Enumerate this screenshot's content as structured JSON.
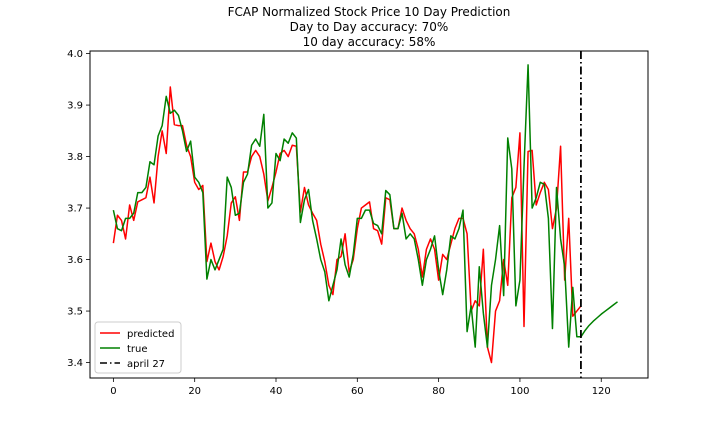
{
  "chart_data": {
    "type": "line",
    "title": "FCAP Normalized Stock Price 10 Day Prediction",
    "subtitle_lines": [
      "Day to Day accuracy: 70%",
      "10 day accuracy: 58%"
    ],
    "xlabel": "",
    "ylabel": "",
    "xlim": [
      -5.75,
      131.5
    ],
    "ylim": [
      3.37,
      4.005
    ],
    "x_ticks": [
      0,
      20,
      40,
      60,
      80,
      100,
      120
    ],
    "y_ticks": [
      3.4,
      3.5,
      3.6,
      3.7,
      3.8,
      3.9,
      4.0
    ],
    "y_tick_labels": [
      "3.4",
      "3.5",
      "3.6",
      "3.7",
      "3.8",
      "3.9",
      "4.0"
    ],
    "grid": false,
    "legend_position": "lower-left",
    "series": [
      {
        "name": "predicted",
        "color": "#ff0000",
        "style": "solid",
        "x_start": 0,
        "values": [
          3.632,
          3.686,
          3.676,
          3.64,
          3.706,
          3.676,
          3.712,
          3.716,
          3.72,
          3.76,
          3.71,
          3.8,
          3.85,
          3.806,
          3.935,
          3.862,
          3.86,
          3.86,
          3.822,
          3.8,
          3.75,
          3.736,
          3.744,
          3.596,
          3.632,
          3.596,
          3.58,
          3.606,
          3.646,
          3.71,
          3.722,
          3.676,
          3.77,
          3.77,
          3.8,
          3.812,
          3.8,
          3.766,
          3.714,
          3.74,
          3.77,
          3.806,
          3.812,
          3.8,
          3.822,
          3.82,
          3.692,
          3.74,
          3.706,
          3.69,
          3.676,
          3.63,
          3.596,
          3.55,
          3.532,
          3.6,
          3.606,
          3.65,
          3.576,
          3.6,
          3.66,
          3.7,
          3.706,
          3.712,
          3.66,
          3.656,
          3.63,
          3.72,
          3.716,
          3.66,
          3.66,
          3.7,
          3.676,
          3.66,
          3.65,
          3.62,
          3.566,
          3.62,
          3.64,
          3.62,
          3.56,
          3.61,
          3.6,
          3.63,
          3.66,
          3.68,
          3.68,
          3.65,
          3.5,
          3.52,
          3.51,
          3.62,
          3.43,
          3.4,
          3.5,
          3.52,
          3.6,
          3.55,
          3.72,
          3.74,
          3.846,
          3.47,
          3.81,
          3.812,
          3.706,
          3.73,
          3.75,
          3.736,
          3.66,
          3.7,
          3.82,
          3.56,
          3.68,
          3.49,
          3.5,
          3.51
        ]
      },
      {
        "name": "true",
        "color": "#008000",
        "style": "solid",
        "x_start": 0,
        "values": [
          3.696,
          3.66,
          3.656,
          3.68,
          3.68,
          3.69,
          3.73,
          3.73,
          3.74,
          3.79,
          3.784,
          3.84,
          3.86,
          3.917,
          3.884,
          3.89,
          3.88,
          3.85,
          3.81,
          3.83,
          3.76,
          3.75,
          3.73,
          3.562,
          3.6,
          3.58,
          3.6,
          3.62,
          3.76,
          3.74,
          3.686,
          3.69,
          3.75,
          3.766,
          3.822,
          3.834,
          3.82,
          3.882,
          3.7,
          3.71,
          3.806,
          3.792,
          3.834,
          3.826,
          3.846,
          3.836,
          3.672,
          3.716,
          3.736,
          3.676,
          3.64,
          3.6,
          3.576,
          3.52,
          3.55,
          3.58,
          3.64,
          3.59,
          3.566,
          3.61,
          3.68,
          3.68,
          3.696,
          3.696,
          3.67,
          3.666,
          3.65,
          3.734,
          3.726,
          3.66,
          3.66,
          3.69,
          3.64,
          3.65,
          3.64,
          3.6,
          3.55,
          3.6,
          3.62,
          3.646,
          3.58,
          3.532,
          3.58,
          3.646,
          3.64,
          3.66,
          3.696,
          3.46,
          3.51,
          3.43,
          3.586,
          3.496,
          3.43,
          3.55,
          3.6,
          3.666,
          3.53,
          3.836,
          3.776,
          3.51,
          3.56,
          3.78,
          3.978,
          3.7,
          3.72,
          3.75,
          3.746,
          3.68,
          3.466,
          3.74,
          3.64,
          3.586,
          3.43,
          3.546,
          3.45,
          3.45,
          3.462,
          3.472,
          3.48,
          3.487,
          3.494,
          3.5,
          3.506,
          3.512,
          3.518
        ]
      }
    ],
    "annotations": [
      {
        "type": "vline",
        "x": 115,
        "label": "april 27",
        "color": "#000000",
        "style": "dashdot"
      }
    ]
  }
}
